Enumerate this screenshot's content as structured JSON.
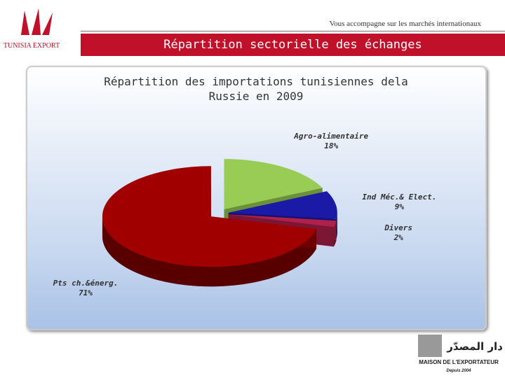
{
  "header": {
    "tagline": "Vous accompagne sur les marchés internationaux",
    "banner": "Répartition sectorielle des échanges",
    "logo_left": "TUNISIA EXPORT",
    "logo_right_arabic": "دار المصدّر",
    "logo_right": "MAISON DE L'EXPORTATEUR",
    "logo_right_since": "Depuis 2004"
  },
  "chart_data": {
    "type": "pie",
    "title": "Répartition des importations tunisiennes dela Russie en 2009",
    "categories": [
      "Agro-alimentaire",
      "Ind Méc.& Elect.",
      "Divers",
      "Pts ch.&énerg."
    ],
    "values": [
      18,
      9,
      2,
      71
    ],
    "value_labels": [
      "18%",
      "9%",
      "2%",
      "71%"
    ],
    "colors": [
      "#99cc55",
      "#1a1aa6",
      "#b0204a",
      "#a00000"
    ]
  }
}
